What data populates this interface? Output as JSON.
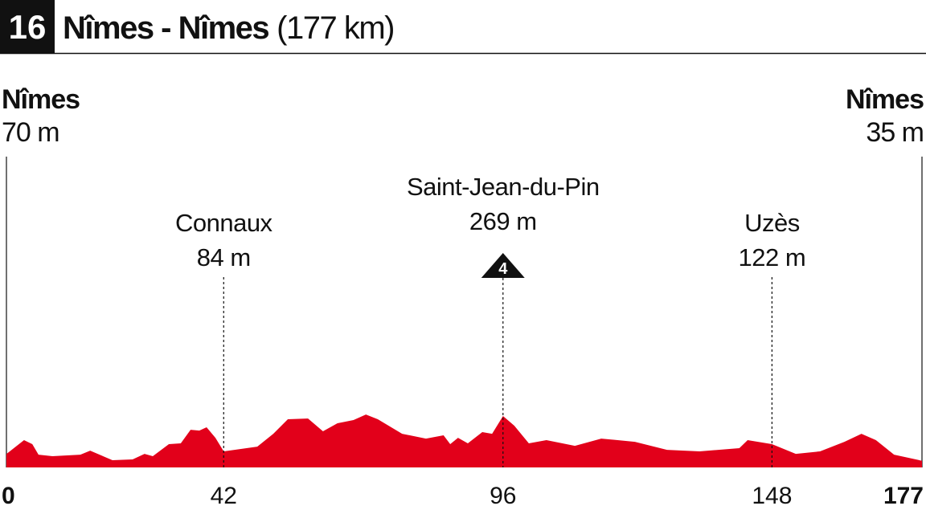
{
  "header": {
    "stage": "16",
    "title": "Nîmes - Nîmes",
    "distance": "(177 km)"
  },
  "chart_data": {
    "type": "area",
    "color": "#e2001a",
    "x": [
      0,
      3.4,
      5,
      6.2,
      8.9,
      14.3,
      16.2,
      20.5,
      24.4,
      26.7,
      28.3,
      31.4,
      33.7,
      35.6,
      37.3,
      38.7,
      40.4,
      42,
      48.5,
      51.6,
      54.4,
      58.3,
      61.2,
      64,
      67.1,
      69.5,
      71.8,
      76.5,
      81.1,
      84.5,
      85.8,
      87.3,
      89.2,
      92,
      93.9,
      96,
      98.2,
      101,
      104.4,
      109.9,
      115,
      121.5,
      127.7,
      134,
      141.7,
      143.3,
      148,
      152.6,
      157.3,
      162,
      165.3,
      168.1,
      171.6,
      177
    ],
    "values": [
      70,
      143,
      122,
      67,
      59,
      67,
      88,
      38,
      42,
      71,
      59,
      122,
      126,
      197,
      193,
      210,
      155,
      84,
      109,
      176,
      252,
      256,
      189,
      231,
      248,
      277,
      252,
      176,
      151,
      168,
      122,
      155,
      126,
      185,
      176,
      269,
      218,
      126,
      143,
      113,
      151,
      134,
      92,
      84,
      101,
      143,
      122,
      71,
      84,
      134,
      176,
      143,
      67,
      35
    ],
    "xlim": [
      0,
      177
    ],
    "xticks": [
      0,
      42,
      96,
      148,
      177
    ],
    "start": {
      "name": "Nîmes",
      "elevation": "70 m"
    },
    "finish": {
      "name": "Nîmes",
      "elevation": "35 m"
    },
    "landmarks": [
      {
        "name": "Connaux",
        "elevation": "84 m",
        "km": 42
      },
      {
        "name": "Saint-Jean-du-Pin",
        "elevation": "269 m",
        "km": 96,
        "category": "4"
      },
      {
        "name": "Uzès",
        "elevation": "122 m",
        "km": 148
      }
    ]
  }
}
